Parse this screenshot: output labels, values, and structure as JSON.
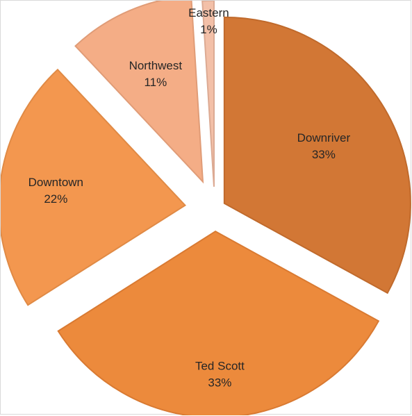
{
  "chart_data": {
    "type": "pie",
    "title": "",
    "legend": "none",
    "slices": [
      {
        "label": "Downriver",
        "value": 33,
        "percent_label": "33%",
        "color": "#d27735",
        "border": "#c06a2c",
        "explode": 0.06
      },
      {
        "label": "Ted Scott",
        "value": 33,
        "percent_label": "33%",
        "color": "#ec8a3c",
        "border": "#d97a32",
        "explode": 0.12
      },
      {
        "label": "Downtown",
        "value": 22,
        "percent_label": "22%",
        "color": "#f3974f",
        "border": "#e08a45",
        "explode": 0.16
      },
      {
        "label": "Northwest",
        "value": 11,
        "percent_label": "11%",
        "color": "#f4ad86",
        "border": "#e09c77",
        "explode": 0.16
      },
      {
        "label": "Eastern",
        "value": 1,
        "percent_label": "1%",
        "color": "#f3c0a8",
        "border": "#dcaa93",
        "explode": 0.12
      }
    ]
  }
}
